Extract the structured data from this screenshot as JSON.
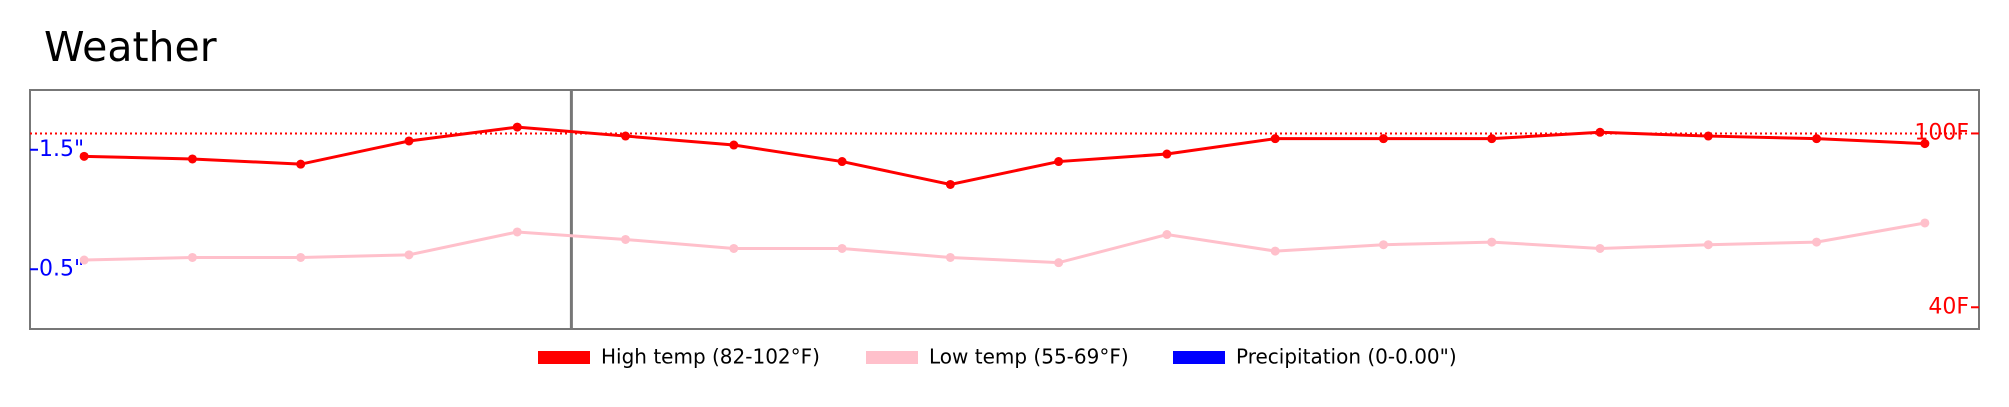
{
  "chart_data": {
    "type": "line",
    "title": "Weather",
    "x": [
      0,
      1,
      2,
      3,
      4,
      5,
      6,
      7,
      8,
      9,
      10,
      11,
      12,
      13,
      14,
      15,
      16,
      17
    ],
    "xlim": [
      -0.5,
      17.5
    ],
    "series": [
      {
        "name": "High temp (82-102°F)",
        "color": "#ff0000",
        "values": [
          92.1,
          91.2,
          89.4,
          97.4,
          102.2,
          99.1,
          96.0,
          90.3,
          82.4,
          90.3,
          92.9,
          98.2,
          98.2,
          98.2,
          100.4,
          99.1,
          98.2,
          96.5
        ]
      },
      {
        "name": "Low temp (55-69°F)",
        "color": "#ffc0cb",
        "values": [
          56.3,
          57.2,
          57.2,
          58.1,
          66.0,
          63.4,
          60.3,
          60.3,
          57.2,
          55.4,
          65.1,
          59.4,
          61.6,
          62.5,
          60.3,
          61.6,
          62.5,
          69.1
        ]
      },
      {
        "name": "Precipitation (0-0.00\")",
        "color": "#0000ff",
        "axis": "y2"
      }
    ],
    "ylim": [
      32.5,
      115
    ],
    "yticks": [
      {
        "value": 100,
        "label": "100F"
      },
      {
        "value": 40,
        "label": "40F"
      }
    ],
    "y2lim": [
      0,
      2
    ],
    "y2ticks": [
      {
        "value": 1.5,
        "label": "1.5\""
      },
      {
        "value": 0.5,
        "label": "0.5\""
      }
    ],
    "reference_line": {
      "value": 100,
      "color": "#ff0000"
    },
    "today_marker": 4.5,
    "legend": "bottom"
  }
}
